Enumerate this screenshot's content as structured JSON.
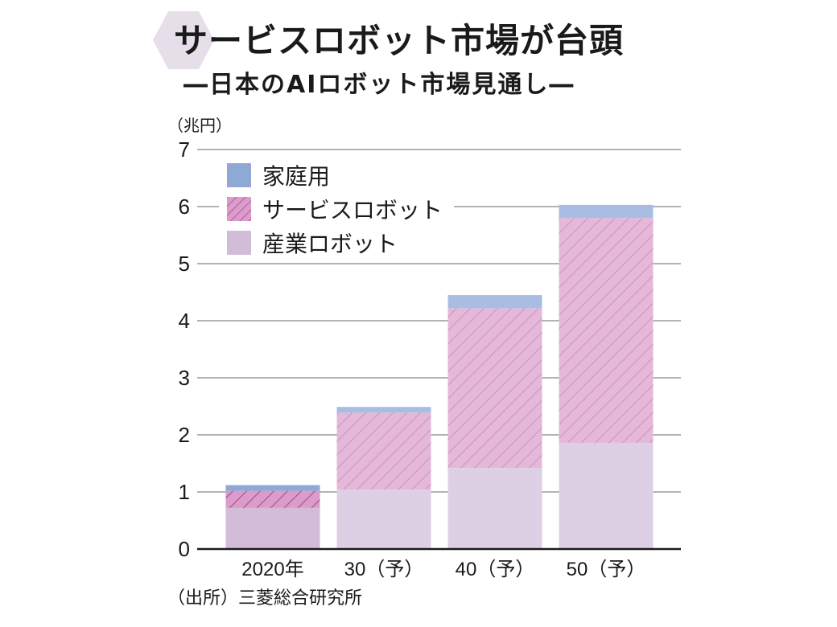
{
  "header": {
    "title": "サービスロボット市場が台頭",
    "subtitle": "―日本のAIロボット市場見通し―"
  },
  "source_note": "（出所）三菱総合研究所",
  "colors": {
    "hexagon": "#e6dfea",
    "household_actual": "#8fa9d6",
    "household_forecast": "#a9bde2",
    "service_actual": "#d99ccb",
    "service_actual_stripe": "#b04a8e",
    "service_forecast": "#e5b8da",
    "service_forecast_stripe": "#c28ab5",
    "industrial_actual": "#d3bcd8",
    "industrial_forecast": "#ded0e4",
    "grid": "#9a9a9a",
    "axis": "#1a1a1a"
  },
  "chart_data": {
    "type": "bar",
    "stacked": true,
    "title": "サービスロボット市場が台頭",
    "subtitle": "日本のAIロボット市場見通し",
    "ylabel": "（兆円）",
    "xlabel": "",
    "ylim": [
      0,
      7
    ],
    "yticks": [
      0,
      1,
      2,
      3,
      4,
      5,
      6,
      7
    ],
    "grid": true,
    "legend_position": "top-left",
    "categories": [
      "2020年",
      "30（予）",
      "40（予）",
      "50（予）"
    ],
    "forecast": [
      false,
      true,
      true,
      true
    ],
    "series": [
      {
        "name": "産業ロボット",
        "key": "industrial",
        "pattern": "solid",
        "values": [
          0.72,
          1.04,
          1.42,
          1.86
        ]
      },
      {
        "name": "サービスロボット",
        "key": "service",
        "pattern": "hatched",
        "values": [
          0.3,
          1.35,
          2.8,
          3.94
        ]
      },
      {
        "name": "家庭用",
        "key": "household",
        "pattern": "solid",
        "values": [
          0.1,
          0.1,
          0.23,
          0.23
        ]
      }
    ],
    "legend_order": [
      "家庭用",
      "サービスロボット",
      "産業ロボット"
    ],
    "source": "三菱総合研究所"
  }
}
